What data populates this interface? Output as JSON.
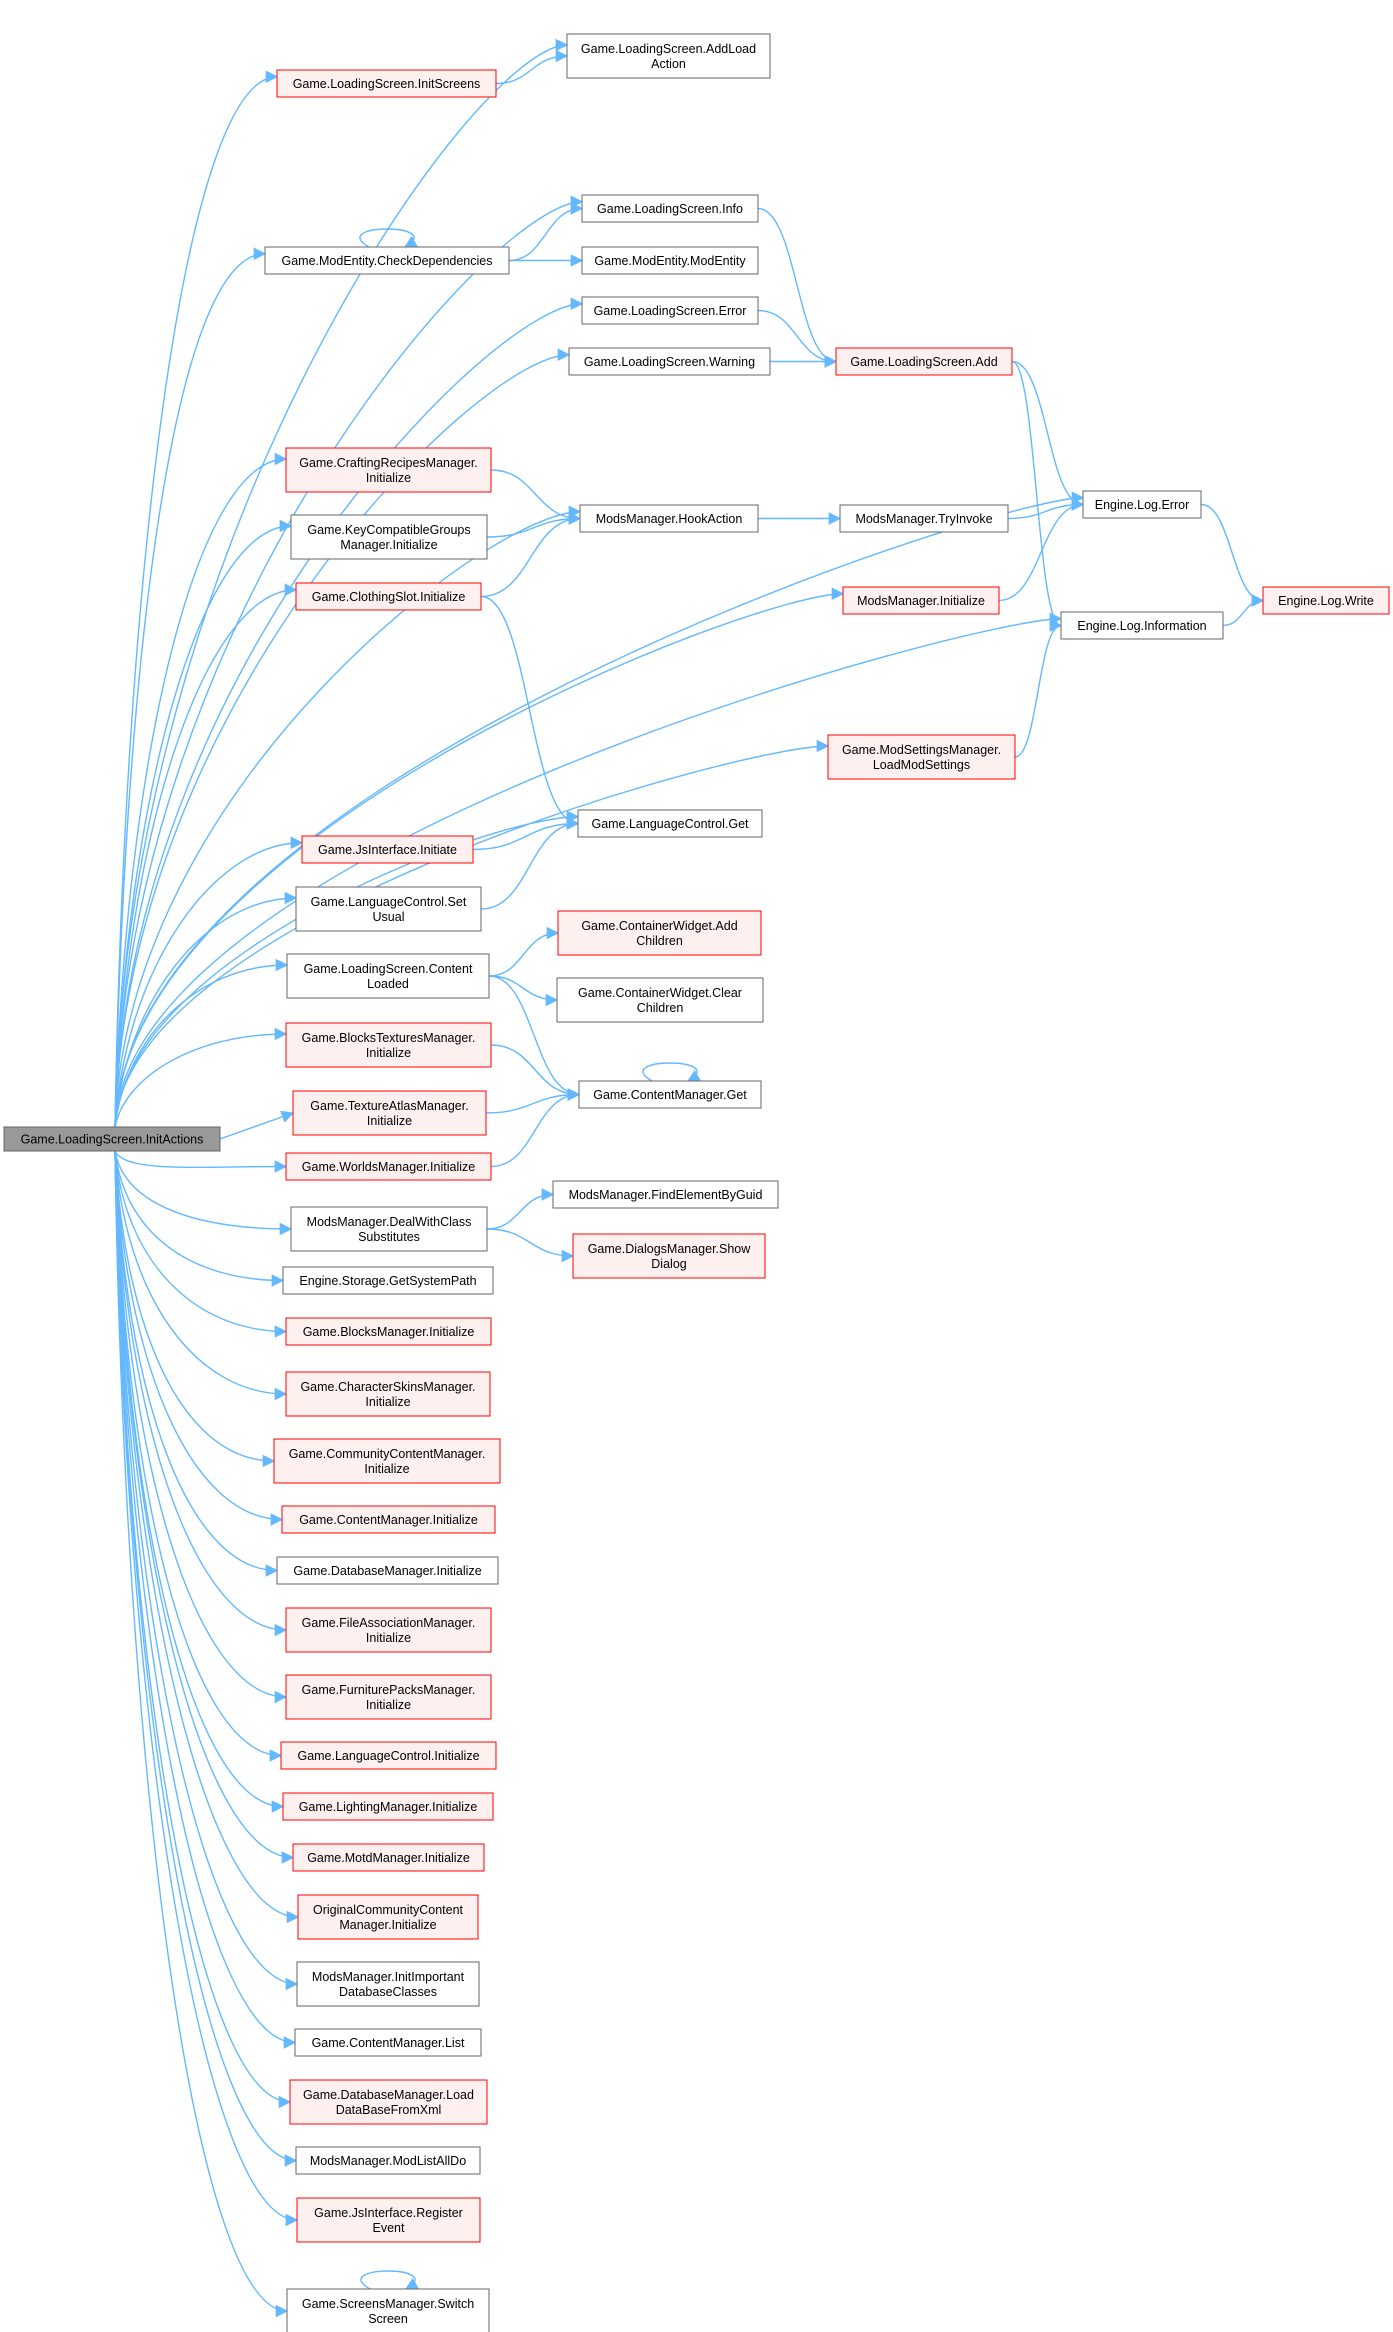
{
  "colors": {
    "edge": "#63b8ff",
    "root_fill": "#999999",
    "normal_fill": "#ffffff",
    "normal_border": "#666666",
    "truncated_fill": "#fff0f0",
    "truncated_border": "#ff0000"
  },
  "nodes": [
    {
      "id": "root",
      "lines": [
        "Game.LoadingScreen.InitActions"
      ],
      "style": "root"
    },
    {
      "id": "initScreens",
      "lines": [
        "Game.LoadingScreen.InitScreens"
      ],
      "style": "truncated"
    },
    {
      "id": "addLoad",
      "lines": [
        "Game.LoadingScreen.AddLoad",
        "Action"
      ],
      "style": "normal"
    },
    {
      "id": "checkDeps",
      "lines": [
        "Game.ModEntity.CheckDependencies"
      ],
      "style": "normal"
    },
    {
      "id": "lsInfo",
      "lines": [
        "Game.LoadingScreen.Info"
      ],
      "style": "normal"
    },
    {
      "id": "modEntity",
      "lines": [
        "Game.ModEntity.ModEntity"
      ],
      "style": "normal"
    },
    {
      "id": "lsError",
      "lines": [
        "Game.LoadingScreen.Error"
      ],
      "style": "normal"
    },
    {
      "id": "lsWarning",
      "lines": [
        "Game.LoadingScreen.Warning"
      ],
      "style": "normal"
    },
    {
      "id": "lsAdd",
      "lines": [
        "Game.LoadingScreen.Add"
      ],
      "style": "truncated"
    },
    {
      "id": "crafting",
      "lines": [
        "Game.CraftingRecipesManager.",
        "Initialize"
      ],
      "style": "truncated"
    },
    {
      "id": "keyCompat",
      "lines": [
        "Game.KeyCompatibleGroups",
        "Manager.Initialize"
      ],
      "style": "normal"
    },
    {
      "id": "clothing",
      "lines": [
        "Game.ClothingSlot.Initialize"
      ],
      "style": "truncated"
    },
    {
      "id": "hookAction",
      "lines": [
        "ModsManager.HookAction"
      ],
      "style": "normal"
    },
    {
      "id": "tryInvoke",
      "lines": [
        "ModsManager.TryInvoke"
      ],
      "style": "normal"
    },
    {
      "id": "logError",
      "lines": [
        "Engine.Log.Error"
      ],
      "style": "normal"
    },
    {
      "id": "modsInit",
      "lines": [
        "ModsManager.Initialize"
      ],
      "style": "truncated"
    },
    {
      "id": "logInfo",
      "lines": [
        "Engine.Log.Information"
      ],
      "style": "normal"
    },
    {
      "id": "logWrite",
      "lines": [
        "Engine.Log.Write"
      ],
      "style": "truncated"
    },
    {
      "id": "modSettings",
      "lines": [
        "Game.ModSettingsManager.",
        "LoadModSettings"
      ],
      "style": "truncated"
    },
    {
      "id": "jsInit",
      "lines": [
        "Game.JsInterface.Initiate"
      ],
      "style": "truncated"
    },
    {
      "id": "langGet",
      "lines": [
        "Game.LanguageControl.Get"
      ],
      "style": "normal"
    },
    {
      "id": "langSet",
      "lines": [
        "Game.LanguageControl.Set",
        "Usual"
      ],
      "style": "normal"
    },
    {
      "id": "contentLoaded",
      "lines": [
        "Game.LoadingScreen.Content",
        "Loaded"
      ],
      "style": "normal"
    },
    {
      "id": "cwAdd",
      "lines": [
        "Game.ContainerWidget.Add",
        "Children"
      ],
      "style": "truncated"
    },
    {
      "id": "cwClear",
      "lines": [
        "Game.ContainerWidget.Clear",
        "Children"
      ],
      "style": "normal"
    },
    {
      "id": "blocksTex",
      "lines": [
        "Game.BlocksTexturesManager.",
        "Initialize"
      ],
      "style": "truncated"
    },
    {
      "id": "cmGet",
      "lines": [
        "Game.ContentManager.Get"
      ],
      "style": "normal"
    },
    {
      "id": "texAtlas",
      "lines": [
        "Game.TextureAtlasManager.",
        "Initialize"
      ],
      "style": "truncated"
    },
    {
      "id": "worlds",
      "lines": [
        "Game.WorldsManager.Initialize"
      ],
      "style": "truncated"
    },
    {
      "id": "dealWith",
      "lines": [
        "ModsManager.DealWithClass",
        "Substitutes"
      ],
      "style": "normal"
    },
    {
      "id": "findGuid",
      "lines": [
        "ModsManager.FindElementByGuid"
      ],
      "style": "normal"
    },
    {
      "id": "dialogs",
      "lines": [
        "Game.DialogsManager.Show",
        "Dialog"
      ],
      "style": "truncated"
    },
    {
      "id": "storage",
      "lines": [
        "Engine.Storage.GetSystemPath"
      ],
      "style": "normal"
    },
    {
      "id": "blocksMgr",
      "lines": [
        "Game.BlocksManager.Initialize"
      ],
      "style": "truncated"
    },
    {
      "id": "charSkins",
      "lines": [
        "Game.CharacterSkinsManager.",
        "Initialize"
      ],
      "style": "truncated"
    },
    {
      "id": "community",
      "lines": [
        "Game.CommunityContentManager.",
        "Initialize"
      ],
      "style": "truncated"
    },
    {
      "id": "cmInit",
      "lines": [
        "Game.ContentManager.Initialize"
      ],
      "style": "truncated"
    },
    {
      "id": "dbInit",
      "lines": [
        "Game.DatabaseManager.Initialize"
      ],
      "style": "normal"
    },
    {
      "id": "fileAssoc",
      "lines": [
        "Game.FileAssociationManager.",
        "Initialize"
      ],
      "style": "truncated"
    },
    {
      "id": "furniture",
      "lines": [
        "Game.FurniturePacksManager.",
        "Initialize"
      ],
      "style": "truncated"
    },
    {
      "id": "langInit",
      "lines": [
        "Game.LanguageControl.Initialize"
      ],
      "style": "truncated"
    },
    {
      "id": "lighting",
      "lines": [
        "Game.LightingManager.Initialize"
      ],
      "style": "truncated"
    },
    {
      "id": "motd",
      "lines": [
        "Game.MotdManager.Initialize"
      ],
      "style": "truncated"
    },
    {
      "id": "origCommunity",
      "lines": [
        "OriginalCommunityContent",
        "Manager.Initialize"
      ],
      "style": "truncated"
    },
    {
      "id": "initImportant",
      "lines": [
        "ModsManager.InitImportant",
        "DatabaseClasses"
      ],
      "style": "normal"
    },
    {
      "id": "cmList",
      "lines": [
        "Game.ContentManager.List"
      ],
      "style": "normal"
    },
    {
      "id": "dbLoad",
      "lines": [
        "Game.DatabaseManager.Load",
        "DataBaseFromXml"
      ],
      "style": "truncated"
    },
    {
      "id": "modListAll",
      "lines": [
        "ModsManager.ModListAllDo"
      ],
      "style": "normal"
    },
    {
      "id": "jsRegister",
      "lines": [
        "Game.JsInterface.Register",
        "Event"
      ],
      "style": "truncated"
    },
    {
      "id": "screensSwitch",
      "lines": [
        "Game.ScreensManager.Switch",
        "Screen"
      ],
      "style": "normal"
    }
  ],
  "edges": [
    [
      "root",
      "initScreens"
    ],
    [
      "root",
      "addLoad"
    ],
    [
      "initScreens",
      "addLoad"
    ],
    [
      "root",
      "checkDeps"
    ],
    [
      "checkDeps",
      "checkDeps"
    ],
    [
      "checkDeps",
      "lsInfo"
    ],
    [
      "checkDeps",
      "modEntity"
    ],
    [
      "root",
      "lsInfo"
    ],
    [
      "root",
      "lsError"
    ],
    [
      "root",
      "lsWarning"
    ],
    [
      "root",
      "logError"
    ],
    [
      "lsInfo",
      "lsAdd"
    ],
    [
      "lsError",
      "lsAdd"
    ],
    [
      "lsWarning",
      "lsAdd"
    ],
    [
      "lsAdd",
      "logError"
    ],
    [
      "lsAdd",
      "logInfo"
    ],
    [
      "root",
      "crafting"
    ],
    [
      "root",
      "keyCompat"
    ],
    [
      "root",
      "clothing"
    ],
    [
      "root",
      "hookAction"
    ],
    [
      "crafting",
      "hookAction"
    ],
    [
      "keyCompat",
      "hookAction"
    ],
    [
      "clothing",
      "hookAction"
    ],
    [
      "hookAction",
      "tryInvoke"
    ],
    [
      "tryInvoke",
      "logError"
    ],
    [
      "logError",
      "logWrite"
    ],
    [
      "logInfo",
      "logWrite"
    ],
    [
      "root",
      "modsInit"
    ],
    [
      "modsInit",
      "logError"
    ],
    [
      "root",
      "logInfo"
    ],
    [
      "root",
      "modSettings"
    ],
    [
      "modSettings",
      "logInfo"
    ],
    [
      "clothing",
      "langGet"
    ],
    [
      "root",
      "langGet"
    ],
    [
      "root",
      "jsInit"
    ],
    [
      "jsInit",
      "langGet"
    ],
    [
      "root",
      "langSet"
    ],
    [
      "langSet",
      "langGet"
    ],
    [
      "root",
      "contentLoaded"
    ],
    [
      "contentLoaded",
      "cwAdd"
    ],
    [
      "contentLoaded",
      "cwClear"
    ],
    [
      "contentLoaded",
      "cmGet"
    ],
    [
      "root",
      "blocksTex"
    ],
    [
      "blocksTex",
      "cmGet"
    ],
    [
      "cmGet",
      "cmGet"
    ],
    [
      "root",
      "texAtlas"
    ],
    [
      "texAtlas",
      "cmGet"
    ],
    [
      "root",
      "worlds"
    ],
    [
      "worlds",
      "cmGet"
    ],
    [
      "root",
      "dealWith"
    ],
    [
      "dealWith",
      "findGuid"
    ],
    [
      "dealWith",
      "dialogs"
    ],
    [
      "root",
      "storage"
    ],
    [
      "root",
      "blocksMgr"
    ],
    [
      "root",
      "charSkins"
    ],
    [
      "root",
      "community"
    ],
    [
      "root",
      "cmInit"
    ],
    [
      "root",
      "dbInit"
    ],
    [
      "root",
      "fileAssoc"
    ],
    [
      "root",
      "furniture"
    ],
    [
      "root",
      "langInit"
    ],
    [
      "root",
      "lighting"
    ],
    [
      "root",
      "motd"
    ],
    [
      "root",
      "origCommunity"
    ],
    [
      "root",
      "initImportant"
    ],
    [
      "root",
      "cmList"
    ],
    [
      "root",
      "dbLoad"
    ],
    [
      "root",
      "modListAll"
    ],
    [
      "root",
      "jsRegister"
    ],
    [
      "root",
      "screensSwitch"
    ],
    [
      "screensSwitch",
      "screensSwitch"
    ]
  ]
}
